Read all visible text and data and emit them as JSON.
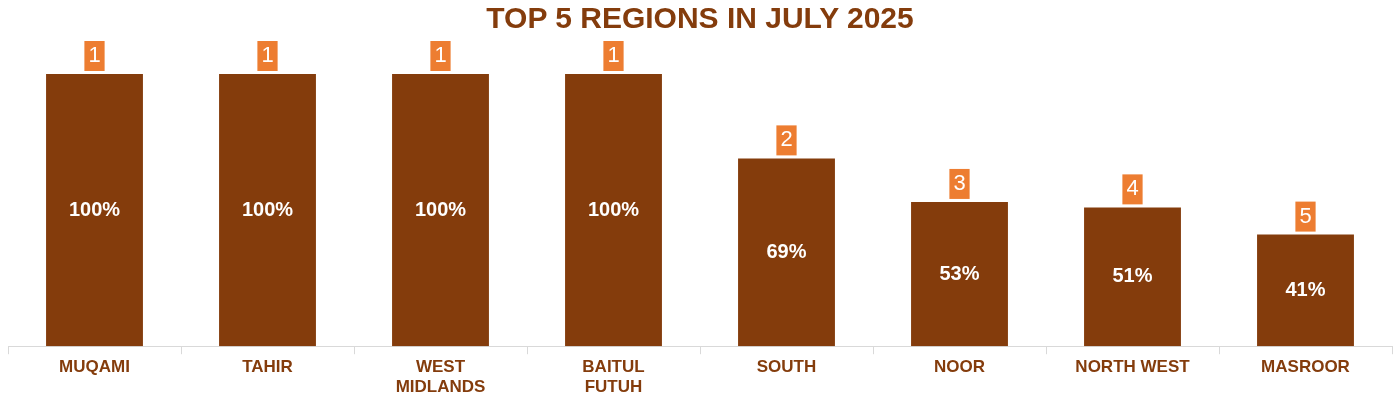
{
  "chart_data": {
    "type": "bar",
    "title": "TOP 5 REGIONS IN JULY 2025",
    "categories": [
      "MUQAMI",
      "TAHIR",
      "WEST MIDLANDS",
      "BAITUL FUTUH",
      "SOUTH",
      "NOOR",
      "NORTH WEST",
      "MASROOR"
    ],
    "values": [
      100,
      100,
      100,
      100,
      69,
      53,
      51,
      41
    ],
    "value_labels": [
      "100%",
      "100%",
      "100%",
      "100%",
      "69%",
      "53%",
      "51%",
      "41%"
    ],
    "color": "#843c0c",
    "ylim": [
      0,
      100
    ],
    "tick_labels": "x",
    "grid": false,
    "legend": false,
    "annotations": [
      {
        "text": "1",
        "x": "MUQAMI",
        "y": 100
      },
      {
        "text": "1",
        "x": "TAHIR",
        "y": 100
      },
      {
        "text": "1",
        "x": "WEST MIDLANDS",
        "y": 100
      },
      {
        "text": "1",
        "x": "BAITUL FUTUH",
        "y": 100
      },
      {
        "text": "2",
        "x": "SOUTH",
        "y": 69
      },
      {
        "text": "3",
        "x": "NOOR",
        "y": 53
      },
      {
        "text": "4",
        "x": "NORTH WEST",
        "y": 51
      },
      {
        "text": "5",
        "x": "MASROOR",
        "y": 41
      }
    ]
  }
}
